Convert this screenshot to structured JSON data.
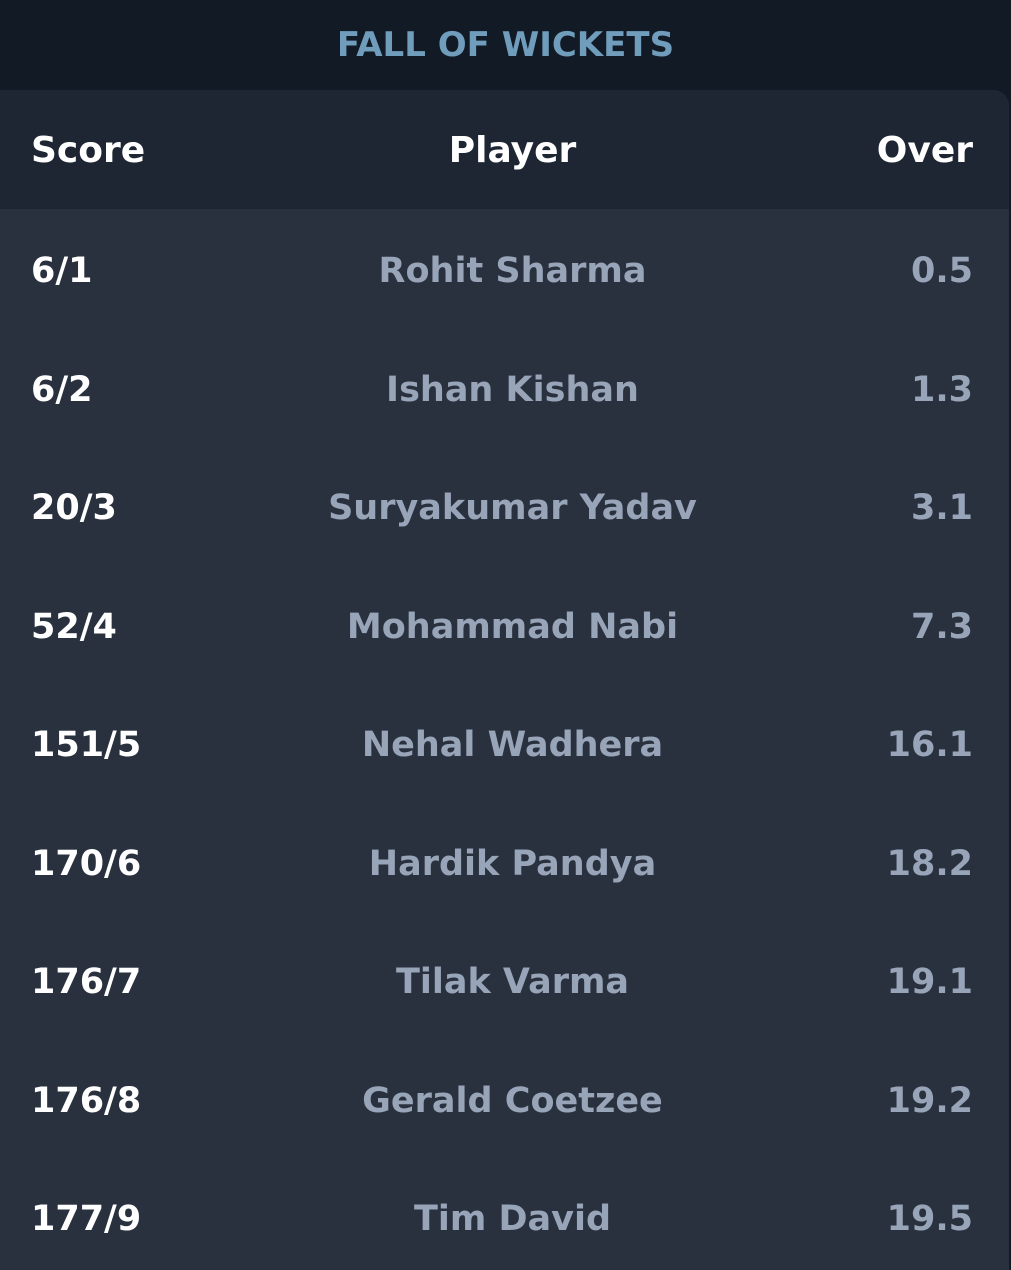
{
  "title": "FALL OF WICKETS",
  "columns": {
    "score": "Score",
    "player": "Player",
    "over": "Over"
  },
  "rows": [
    {
      "score": "6/1",
      "player": "Rohit Sharma",
      "over": "0.5"
    },
    {
      "score": "6/2",
      "player": "Ishan Kishan",
      "over": "1.3"
    },
    {
      "score": "20/3",
      "player": "Suryakumar Yadav",
      "over": "3.1"
    },
    {
      "score": "52/4",
      "player": "Mohammad Nabi",
      "over": "7.3"
    },
    {
      "score": "151/5",
      "player": "Nehal Wadhera",
      "over": "16.1"
    },
    {
      "score": "170/6",
      "player": "Hardik Pandya",
      "over": "18.2"
    },
    {
      "score": "176/7",
      "player": "Tilak Varma",
      "over": "19.1"
    },
    {
      "score": "176/8",
      "player": "Gerald Coetzee",
      "over": "19.2"
    },
    {
      "score": "177/9",
      "player": "Tim David",
      "over": "19.5"
    }
  ],
  "colors": {
    "background": "#121a26",
    "card": "#29313f",
    "header": "#1f2633",
    "title": "#6f9dbb",
    "muted_text": "#98a4b8",
    "text": "#ffffff"
  }
}
